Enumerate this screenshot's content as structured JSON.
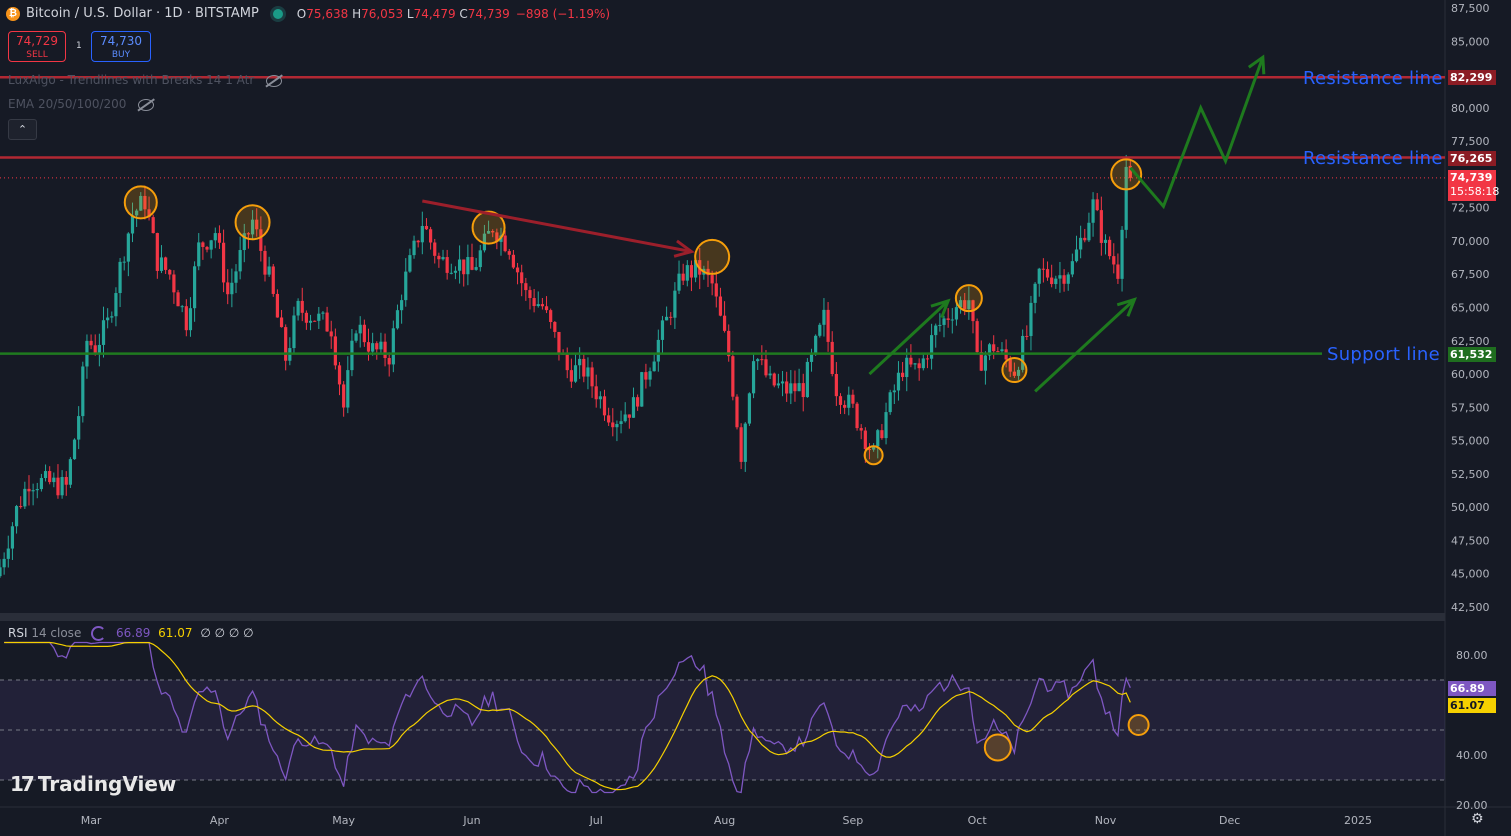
{
  "header": {
    "symbol_title": "Bitcoin / U.S. Dollar · 1D · BITSTAMP",
    "btc_icon": "₿",
    "ohlc": [
      {
        "k": "O",
        "v": "75,638"
      },
      {
        "k": "H",
        "v": "76,053"
      },
      {
        "k": "L",
        "v": "74,479"
      },
      {
        "k": "C",
        "v": "74,739"
      }
    ],
    "change": "−898 (−1.19%)",
    "sell_price": "74,729",
    "sell_label": "SELL",
    "buy_price": "74,730",
    "buy_label": "BUY",
    "spread": "1",
    "indicator_1": "LuxAlgo - Trendlines with Breaks 14 1 Atr",
    "indicator_2": "EMA 20/50/100/200",
    "collapse_icon": "chevron-up-icon",
    "colors": {
      "up": "#26a69a",
      "down": "#f23645",
      "accent": "#2962ff"
    }
  },
  "annotations": {
    "resistance_1": "Resistance line",
    "resistance_2": "Resistance line",
    "support": "Support line"
  },
  "price_tags": {
    "resistance_top": "82,299",
    "resistance_mid": "76,265",
    "last_price": "74,739",
    "countdown": "15:58:18",
    "support": "61,532"
  },
  "rsi_legend": {
    "name": "RSI",
    "params": "14 close",
    "rsi_value": "66.89",
    "ma_value": "61.07",
    "empty": "∅ ∅ ∅ ∅"
  },
  "rsi_tags": {
    "rsi": "66.89",
    "ma": "61.07"
  },
  "branding": {
    "logo_text": "TradingView",
    "logo_mark": "17",
    "settings_icon": "gear-icon"
  },
  "chart_data": {
    "type": "candlestick",
    "symbol": "BTC/USD",
    "timeframe": "1D",
    "y_ticks": [
      87500,
      85000,
      82500,
      80000,
      77500,
      75000,
      72500,
      70000,
      67500,
      65000,
      62500,
      60000,
      57500,
      55000,
      52500,
      50000,
      47500,
      45000,
      42500
    ],
    "y_range": [
      41500,
      87800
    ],
    "x_range": [
      "2024-02-08",
      "2025-01-22"
    ],
    "x_ticks": [
      {
        "label": "Mar",
        "date": "2024-03-01"
      },
      {
        "label": "Apr",
        "date": "2024-04-01"
      },
      {
        "label": "May",
        "date": "2024-05-01"
      },
      {
        "label": "Jun",
        "date": "2024-06-01"
      },
      {
        "label": "Jul",
        "date": "2024-07-01"
      },
      {
        "label": "Aug",
        "date": "2024-08-01"
      },
      {
        "label": "Sep",
        "date": "2024-09-01"
      },
      {
        "label": "Oct",
        "date": "2024-10-01"
      },
      {
        "label": "Nov",
        "date": "2024-11-01"
      },
      {
        "label": "Dec",
        "date": "2024-12-01"
      },
      {
        "label": "2025",
        "date": "2025-01-01"
      }
    ],
    "closes": [
      [
        "2024-02-08",
        45500
      ],
      [
        "2024-02-12",
        49800
      ],
      [
        "2024-02-15",
        52000
      ],
      [
        "2024-02-20",
        51800
      ],
      [
        "2024-02-24",
        51500
      ],
      [
        "2024-02-27",
        57000
      ],
      [
        "2024-02-29",
        62500
      ],
      [
        "2024-03-02",
        62000
      ],
      [
        "2024-03-05",
        63800
      ],
      [
        "2024-03-08",
        68000
      ],
      [
        "2024-03-11",
        72000
      ],
      [
        "2024-03-14",
        73000
      ],
      [
        "2024-03-17",
        68500
      ],
      [
        "2024-03-20",
        67500
      ],
      [
        "2024-03-24",
        64000
      ],
      [
        "2024-03-27",
        69500
      ],
      [
        "2024-03-31",
        70700
      ],
      [
        "2024-04-03",
        66000
      ],
      [
        "2024-04-06",
        68800
      ],
      [
        "2024-04-09",
        71500
      ],
      [
        "2024-04-13",
        67200
      ],
      [
        "2024-04-17",
        61200
      ],
      [
        "2024-04-20",
        64900
      ],
      [
        "2024-04-24",
        64300
      ],
      [
        "2024-04-28",
        63500
      ],
      [
        "2024-05-01",
        57500
      ],
      [
        "2024-05-04",
        63800
      ],
      [
        "2024-05-08",
        61800
      ],
      [
        "2024-05-12",
        61400
      ],
      [
        "2024-05-15",
        66200
      ],
      [
        "2024-05-20",
        71400
      ],
      [
        "2024-05-24",
        68500
      ],
      [
        "2024-05-28",
        68500
      ],
      [
        "2024-06-01",
        67700
      ],
      [
        "2024-06-06",
        71100
      ],
      [
        "2024-06-10",
        69600
      ],
      [
        "2024-06-14",
        66000
      ],
      [
        "2024-06-18",
        65100
      ],
      [
        "2024-06-24",
        60300
      ],
      [
        "2024-06-28",
        60300
      ],
      [
        "2024-07-04",
        57100
      ],
      [
        "2024-07-06",
        56700
      ],
      [
        "2024-07-10",
        57600
      ],
      [
        "2024-07-14",
        60900
      ],
      [
        "2024-07-18",
        64000
      ],
      [
        "2024-07-22",
        67600
      ],
      [
        "2024-07-26",
        67800
      ],
      [
        "2024-07-29",
        66700
      ],
      [
        "2024-08-02",
        61400
      ],
      [
        "2024-08-05",
        54000
      ],
      [
        "2024-08-08",
        61700
      ],
      [
        "2024-08-12",
        59300
      ],
      [
        "2024-08-16",
        58800
      ],
      [
        "2024-08-20",
        59000
      ],
      [
        "2024-08-25",
        64200
      ],
      [
        "2024-08-28",
        59000
      ],
      [
        "2024-09-01",
        57300
      ],
      [
        "2024-09-06",
        53900
      ],
      [
        "2024-09-09",
        57000
      ],
      [
        "2024-09-13",
        60500
      ],
      [
        "2024-09-17",
        60300
      ],
      [
        "2024-09-21",
        63300
      ],
      [
        "2024-09-26",
        65200
      ],
      [
        "2024-09-29",
        65600
      ],
      [
        "2024-10-01",
        60800
      ],
      [
        "2024-10-05",
        62100
      ],
      [
        "2024-10-10",
        60300
      ],
      [
        "2024-10-13",
        62900
      ],
      [
        "2024-10-16",
        67600
      ],
      [
        "2024-10-21",
        67400
      ],
      [
        "2024-10-24",
        68200
      ],
      [
        "2024-10-29",
        72700
      ],
      [
        "2024-11-01",
        69500
      ],
      [
        "2024-11-04",
        67800
      ],
      [
        "2024-11-06",
        75600
      ],
      [
        "2024-11-07",
        74739
      ]
    ],
    "horizontal_lines": [
      {
        "price": 82299,
        "label": "Resistance line",
        "color": "#b22833"
      },
      {
        "price": 76265,
        "label": "Resistance line",
        "color": "#b22833"
      },
      {
        "price": 61532,
        "label": "Support line",
        "color": "#1f7a1f"
      }
    ],
    "last_price": 74739,
    "rsi": {
      "length": 14,
      "source": "close",
      "current": 66.89,
      "ma_current": 61.07,
      "ticks": [
        80,
        40,
        20
      ],
      "bands": [
        70,
        50,
        30
      ],
      "range": [
        20,
        88
      ]
    }
  }
}
